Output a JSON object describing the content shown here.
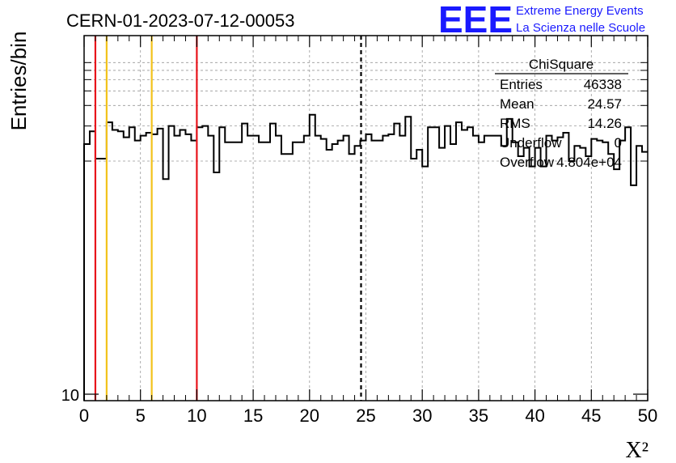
{
  "run_title": "CERN-01-2023-07-12-00053",
  "logo": {
    "mark": "EEE",
    "line1": "Extreme Energy Events",
    "line2": "La Scienza nelle Scuole",
    "color": "#1a1aff"
  },
  "chart_data": {
    "type": "histogram",
    "ylabel": "Entries/bin",
    "xlabel": "X²",
    "xlim": [
      0,
      50
    ],
    "ylog": true,
    "ytick_labels": [
      "10"
    ],
    "xticks": [
      0,
      5,
      10,
      15,
      20,
      25,
      30,
      35,
      40,
      45,
      50
    ],
    "grid": true,
    "bin_width": 0.5,
    "bins": [
      [
        0.0,
        1400
      ],
      [
        0.5,
        1800
      ],
      [
        1.0,
        1050
      ],
      [
        1.5,
        1050
      ],
      [
        2.0,
        2150
      ],
      [
        2.5,
        1850
      ],
      [
        3.0,
        1800
      ],
      [
        3.5,
        1600
      ],
      [
        4.0,
        1950
      ],
      [
        4.5,
        1500
      ],
      [
        5.0,
        1650
      ],
      [
        5.5,
        1750
      ],
      [
        6.0,
        1700
      ],
      [
        6.5,
        1900
      ],
      [
        7.0,
        700
      ],
      [
        7.5,
        2000
      ],
      [
        8.0,
        1650
      ],
      [
        8.5,
        1850
      ],
      [
        9.0,
        1700
      ],
      [
        9.5,
        1500
      ],
      [
        10.0,
        1950
      ],
      [
        10.5,
        2000
      ],
      [
        11.0,
        1650
      ],
      [
        11.5,
        800
      ],
      [
        12.0,
        1950
      ],
      [
        12.5,
        1450
      ],
      [
        13.0,
        1450
      ],
      [
        13.5,
        1450
      ],
      [
        14.0,
        2100
      ],
      [
        14.5,
        1650
      ],
      [
        15.0,
        1650
      ],
      [
        15.5,
        1450
      ],
      [
        16.0,
        1450
      ],
      [
        16.5,
        2100
      ],
      [
        17.0,
        1650
      ],
      [
        17.5,
        1150
      ],
      [
        18.0,
        1150
      ],
      [
        18.5,
        1450
      ],
      [
        19.0,
        1450
      ],
      [
        19.5,
        1650
      ],
      [
        20.0,
        2500
      ],
      [
        20.5,
        1650
      ],
      [
        21.0,
        1550
      ],
      [
        21.5,
        1250
      ],
      [
        22.0,
        1400
      ],
      [
        22.5,
        1500
      ],
      [
        23.0,
        1650
      ],
      [
        23.5,
        1150
      ],
      [
        24.0,
        1350
      ],
      [
        24.5,
        1500
      ],
      [
        25.0,
        1700
      ],
      [
        25.5,
        1500
      ],
      [
        26.0,
        1500
      ],
      [
        26.5,
        1650
      ],
      [
        27.0,
        1700
      ],
      [
        27.5,
        2100
      ],
      [
        28.0,
        1650
      ],
      [
        28.5,
        2400
      ],
      [
        29.0,
        1050
      ],
      [
        29.5,
        1250
      ],
      [
        30.0,
        900
      ],
      [
        30.5,
        1950
      ],
      [
        31.0,
        1950
      ],
      [
        31.5,
        1300
      ],
      [
        32.0,
        2000
      ],
      [
        32.5,
        1400
      ],
      [
        33.0,
        2150
      ],
      [
        33.5,
        1850
      ],
      [
        34.0,
        1950
      ],
      [
        34.5,
        1650
      ],
      [
        35.0,
        1450
      ],
      [
        35.5,
        1650
      ],
      [
        36.0,
        1650
      ],
      [
        36.5,
        1650
      ],
      [
        37.0,
        1350
      ],
      [
        37.5,
        2300
      ],
      [
        38.0,
        1450
      ],
      [
        38.5,
        1100
      ],
      [
        39.0,
        1300
      ],
      [
        39.5,
        900
      ],
      [
        40.0,
        1300
      ],
      [
        40.5,
        900
      ],
      [
        41.0,
        1650
      ],
      [
        41.5,
        1500
      ],
      [
        42.0,
        1600
      ],
      [
        42.5,
        1750
      ],
      [
        43.0,
        1000
      ],
      [
        43.5,
        1350
      ],
      [
        44.0,
        1300
      ],
      [
        44.5,
        1100
      ],
      [
        45.0,
        1550
      ],
      [
        45.5,
        1500
      ],
      [
        46.0,
        1450
      ],
      [
        46.5,
        1150
      ],
      [
        47.0,
        850
      ],
      [
        47.5,
        1500
      ],
      [
        48.0,
        1950
      ],
      [
        48.5,
        620
      ],
      [
        49.0,
        1350
      ],
      [
        49.5,
        1200
      ]
    ],
    "vertical_lines": [
      {
        "x": 1,
        "color": "#e8131b",
        "style": "solid"
      },
      {
        "x": 2,
        "color": "#f2c21a",
        "style": "solid"
      },
      {
        "x": 6,
        "color": "#f2c21a",
        "style": "solid"
      },
      {
        "x": 10,
        "color": "#e8131b",
        "style": "solid"
      },
      {
        "x": 24.57,
        "color": "#000000",
        "style": "dashed"
      }
    ],
    "stats_box": {
      "title": "ChiSquare",
      "rows": [
        {
          "label": "Entries",
          "value": "46338"
        },
        {
          "label": "Mean",
          "value": "24.57"
        },
        {
          "label": "RMS",
          "value": "14.26"
        },
        {
          "label": "Underflow",
          "value": "0"
        },
        {
          "label": "Overflow",
          "value": "4.804e+04"
        }
      ]
    }
  }
}
